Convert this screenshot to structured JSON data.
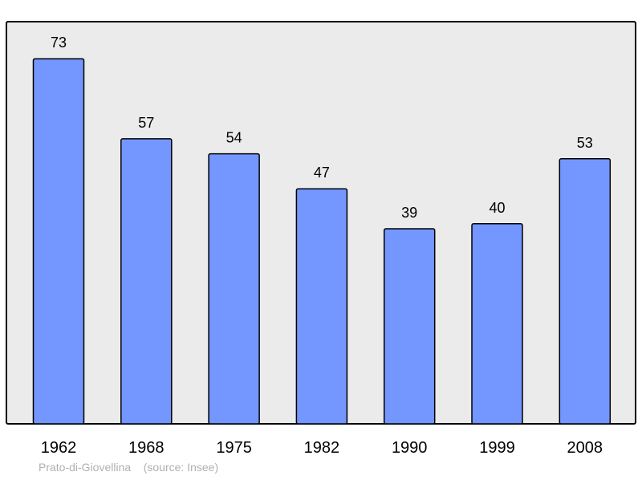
{
  "chart_data": {
    "type": "bar",
    "categories": [
      "1962",
      "1968",
      "1975",
      "1982",
      "1990",
      "1999",
      "2008"
    ],
    "values": [
      73,
      57,
      54,
      47,
      39,
      40,
      53
    ],
    "data_labels": [
      "73",
      "57",
      "54",
      "47",
      "39",
      "40",
      "53"
    ],
    "title": "",
    "xlabel": "",
    "ylabel": "",
    "ylim": [
      0,
      80
    ],
    "grid": false,
    "legend": "none"
  },
  "footer": {
    "place": "Prato-di-Giovellina",
    "source": "(source: Insee)"
  },
  "colors": {
    "plot_background": "#ebebeb",
    "bar_fill": "#7396ff",
    "bar_stroke": "#000000",
    "axis": "#000000",
    "footer_text": "#b0b0b0"
  }
}
